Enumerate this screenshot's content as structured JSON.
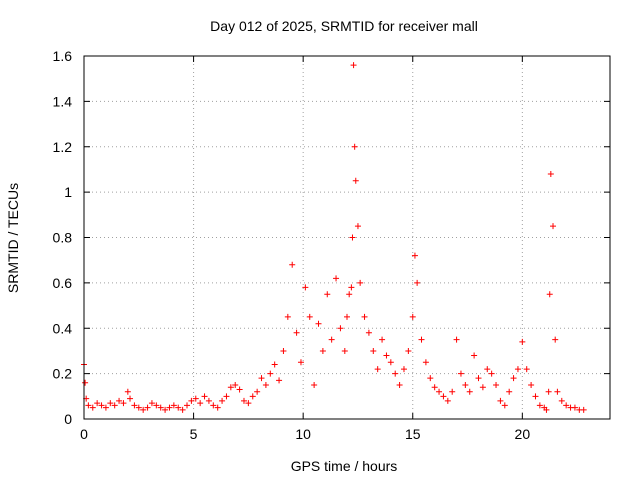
{
  "chart_data": {
    "type": "scatter",
    "title": "Day 012 of 2025, SRMTID for receiver mall",
    "xlabel": "GPS time / hours",
    "ylabel": "SRMTID / TECUs",
    "xlim": [
      0,
      24
    ],
    "ylim": [
      0,
      1.6
    ],
    "xticks": [
      "0",
      "5",
      "10",
      "15",
      "20"
    ],
    "yticks": [
      "0",
      "0.2",
      "0.4",
      "0.6",
      "0.8",
      "1",
      "1.2",
      "1.4",
      "1.6"
    ],
    "grid": true,
    "marker": "+",
    "color": "#ff0000",
    "series": [
      {
        "name": "SRMTID",
        "x": [
          0,
          0.05,
          0.1,
          0.2,
          0.4,
          0.6,
          0.8,
          1.0,
          1.2,
          1.4,
          1.6,
          1.8,
          2.0,
          2.1,
          2.3,
          2.5,
          2.7,
          2.9,
          3.1,
          3.3,
          3.5,
          3.7,
          3.9,
          4.1,
          4.3,
          4.5,
          4.7,
          4.9,
          5.1,
          5.3,
          5.5,
          5.7,
          5.9,
          6.1,
          6.3,
          6.5,
          6.7,
          6.9,
          7.1,
          7.3,
          7.5,
          7.7,
          7.9,
          8.1,
          8.3,
          8.5,
          8.7,
          8.9,
          9.1,
          9.3,
          9.5,
          9.7,
          9.9,
          10.1,
          10.3,
          10.5,
          10.7,
          10.9,
          11.1,
          11.3,
          11.5,
          11.7,
          11.9,
          12.0,
          12.1,
          12.2,
          12.25,
          12.3,
          12.35,
          12.4,
          12.5,
          12.6,
          12.8,
          13.0,
          13.2,
          13.4,
          13.6,
          13.8,
          14.0,
          14.2,
          14.4,
          14.6,
          14.8,
          15.0,
          15.1,
          15.2,
          15.4,
          15.6,
          15.8,
          16.0,
          16.2,
          16.4,
          16.6,
          16.8,
          17.0,
          17.2,
          17.4,
          17.6,
          17.8,
          18.0,
          18.2,
          18.4,
          18.6,
          18.8,
          19.0,
          19.2,
          19.4,
          19.6,
          19.8,
          20.0,
          20.2,
          20.4,
          20.6,
          20.8,
          21.0,
          21.1,
          21.2,
          21.25,
          21.3,
          21.4,
          21.5,
          21.6,
          21.8,
          22.0,
          22.2,
          22.4,
          22.6,
          22.8
        ],
        "values": [
          0.24,
          0.16,
          0.09,
          0.06,
          0.05,
          0.07,
          0.06,
          0.05,
          0.07,
          0.06,
          0.08,
          0.07,
          0.12,
          0.09,
          0.06,
          0.05,
          0.04,
          0.05,
          0.07,
          0.06,
          0.05,
          0.04,
          0.05,
          0.06,
          0.05,
          0.04,
          0.06,
          0.08,
          0.09,
          0.07,
          0.1,
          0.08,
          0.06,
          0.05,
          0.08,
          0.1,
          0.14,
          0.15,
          0.13,
          0.08,
          0.07,
          0.1,
          0.12,
          0.18,
          0.15,
          0.2,
          0.24,
          0.17,
          0.3,
          0.45,
          0.68,
          0.38,
          0.25,
          0.58,
          0.45,
          0.15,
          0.42,
          0.3,
          0.55,
          0.35,
          0.62,
          0.4,
          0.3,
          0.45,
          0.55,
          0.58,
          0.8,
          1.56,
          1.2,
          1.05,
          0.85,
          0.6,
          0.45,
          0.38,
          0.3,
          0.22,
          0.35,
          0.28,
          0.25,
          0.2,
          0.15,
          0.22,
          0.3,
          0.45,
          0.72,
          0.6,
          0.35,
          0.25,
          0.18,
          0.14,
          0.12,
          0.1,
          0.08,
          0.12,
          0.35,
          0.2,
          0.15,
          0.12,
          0.28,
          0.18,
          0.14,
          0.22,
          0.2,
          0.15,
          0.08,
          0.06,
          0.12,
          0.18,
          0.22,
          0.34,
          0.22,
          0.15,
          0.1,
          0.06,
          0.05,
          0.04,
          0.12,
          0.55,
          1.08,
          0.85,
          0.35,
          0.12,
          0.08,
          0.06,
          0.05,
          0.05,
          0.04,
          0.04
        ]
      }
    ]
  }
}
